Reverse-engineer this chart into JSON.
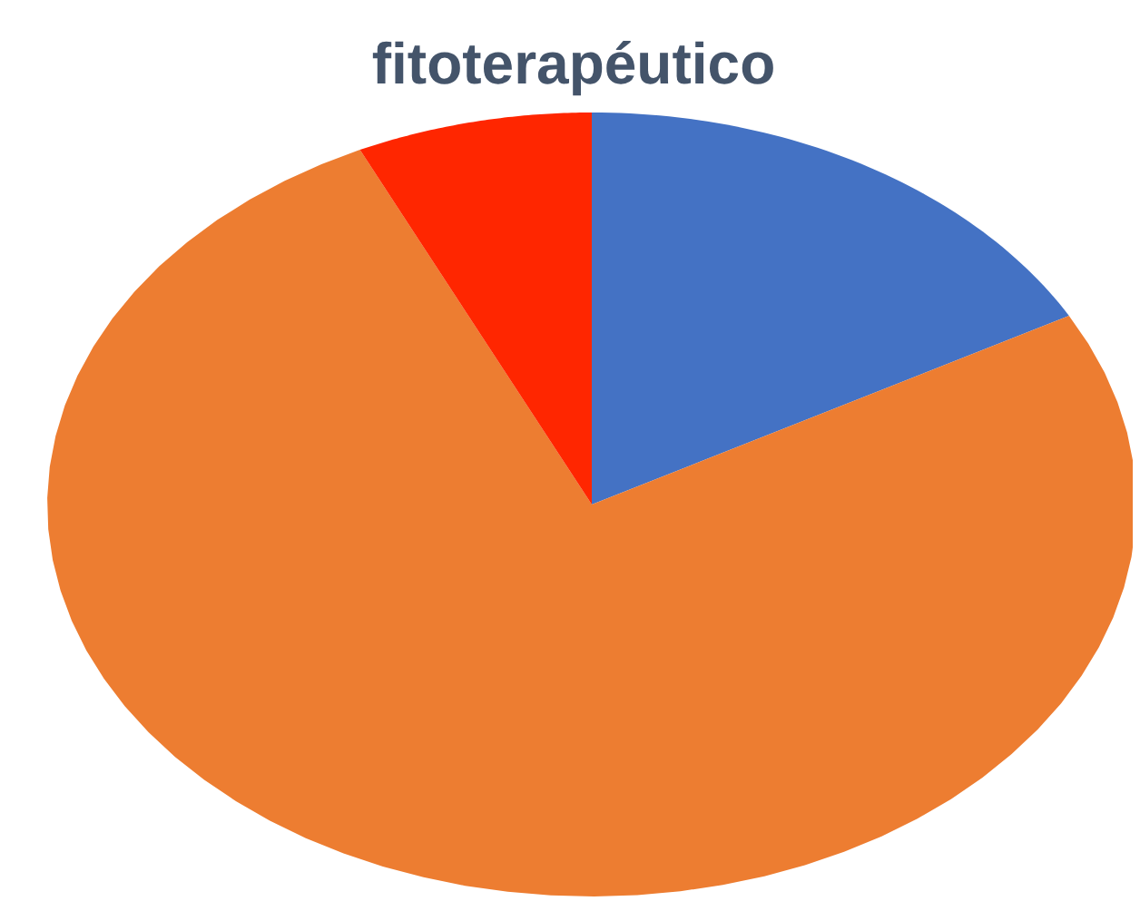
{
  "chart_data": {
    "type": "pie",
    "title": "fitoterapéutico",
    "categories": [
      null,
      null,
      null
    ],
    "values": [
      17,
      76,
      7
    ],
    "colors": [
      "#4472c4",
      "#ed7d31",
      "#ff2600"
    ]
  }
}
